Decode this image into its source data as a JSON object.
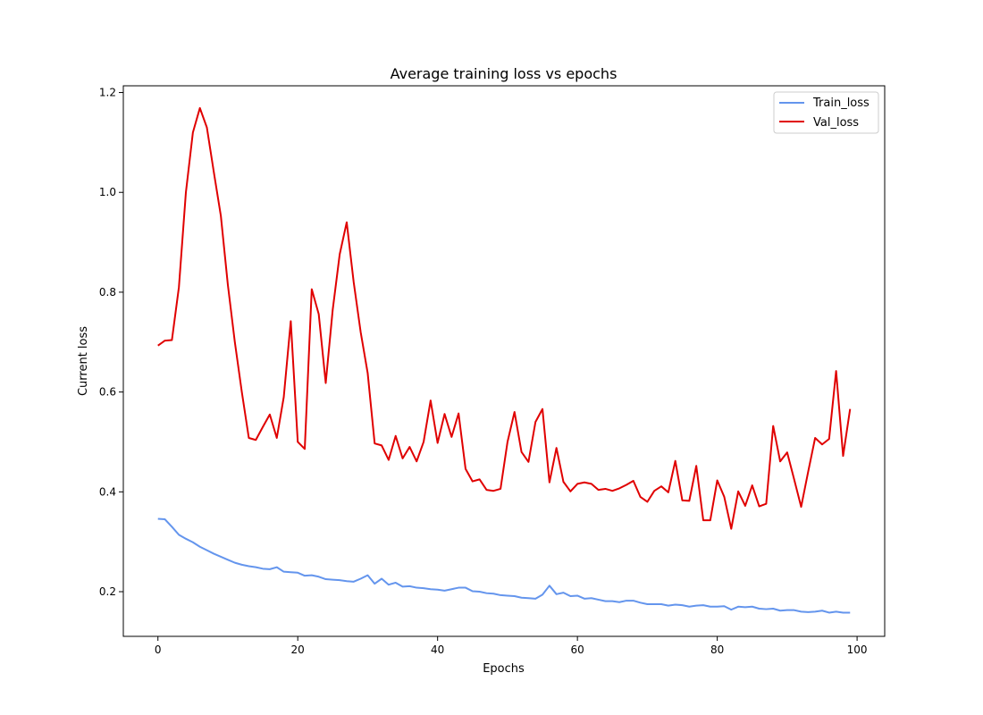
{
  "chart_data": {
    "type": "line",
    "title": "Average training loss vs epochs",
    "xlabel": "Epochs",
    "ylabel": "Current loss",
    "xlim": [
      -4.95,
      103.95
    ],
    "ylim": [
      0.1105,
      1.2135
    ],
    "xticks": [
      0,
      20,
      40,
      60,
      80,
      100
    ],
    "yticks": [
      0.2,
      0.4,
      0.6,
      0.8,
      1.0,
      1.2
    ],
    "xtick_labels": [
      "0",
      "20",
      "40",
      "60",
      "80",
      "100"
    ],
    "ytick_labels": [
      "0.2",
      "0.4",
      "0.6",
      "0.8",
      "1.0",
      "1.2"
    ],
    "grid": false,
    "legend_position": "top-right",
    "x": [
      0,
      1,
      2,
      3,
      4,
      5,
      6,
      7,
      8,
      9,
      10,
      11,
      12,
      13,
      14,
      15,
      16,
      17,
      18,
      19,
      20,
      21,
      22,
      23,
      24,
      25,
      26,
      27,
      28,
      29,
      30,
      31,
      32,
      33,
      34,
      35,
      36,
      37,
      38,
      39,
      40,
      41,
      42,
      43,
      44,
      45,
      46,
      47,
      48,
      49,
      50,
      51,
      52,
      53,
      54,
      55,
      56,
      57,
      58,
      59,
      60,
      61,
      62,
      63,
      64,
      65,
      66,
      67,
      68,
      69,
      70,
      71,
      72,
      73,
      74,
      75,
      76,
      77,
      78,
      79,
      80,
      81,
      82,
      83,
      84,
      85,
      86,
      87,
      88,
      89,
      90,
      91,
      92,
      93,
      94,
      95,
      96,
      97,
      98,
      99
    ],
    "series": [
      {
        "name": "Train_loss",
        "color": "#6495ed",
        "values": [
          0.346,
          0.345,
          0.33,
          0.314,
          0.306,
          0.299,
          0.29,
          0.283,
          0.276,
          0.27,
          0.264,
          0.258,
          0.254,
          0.251,
          0.249,
          0.246,
          0.245,
          0.249,
          0.24,
          0.239,
          0.238,
          0.232,
          0.233,
          0.23,
          0.225,
          0.224,
          0.223,
          0.221,
          0.22,
          0.226,
          0.233,
          0.216,
          0.226,
          0.214,
          0.218,
          0.21,
          0.211,
          0.208,
          0.207,
          0.205,
          0.204,
          0.202,
          0.205,
          0.208,
          0.208,
          0.201,
          0.2,
          0.197,
          0.196,
          0.193,
          0.192,
          0.191,
          0.188,
          0.187,
          0.186,
          0.194,
          0.212,
          0.195,
          0.198,
          0.191,
          0.192,
          0.186,
          0.187,
          0.184,
          0.181,
          0.181,
          0.179,
          0.182,
          0.182,
          0.178,
          0.175,
          0.175,
          0.175,
          0.172,
          0.174,
          0.173,
          0.17,
          0.172,
          0.173,
          0.17,
          0.17,
          0.171,
          0.164,
          0.17,
          0.169,
          0.17,
          0.166,
          0.165,
          0.166,
          0.162,
          0.163,
          0.163,
          0.16,
          0.159,
          0.16,
          0.162,
          0.158,
          0.16,
          0.158,
          0.158
        ]
      },
      {
        "name": "Val_loss",
        "color": "#e00000",
        "values": [
          0.693,
          0.703,
          0.704,
          0.81,
          1.0,
          1.12,
          1.169,
          1.13,
          1.04,
          0.953,
          0.815,
          0.7,
          0.6,
          0.508,
          0.504,
          0.53,
          0.555,
          0.508,
          0.59,
          0.742,
          0.5,
          0.486,
          0.806,
          0.756,
          0.618,
          0.765,
          0.876,
          0.94,
          0.82,
          0.72,
          0.638,
          0.497,
          0.493,
          0.464,
          0.512,
          0.467,
          0.49,
          0.461,
          0.5,
          0.583,
          0.498,
          0.556,
          0.51,
          0.557,
          0.446,
          0.421,
          0.425,
          0.404,
          0.402,
          0.406,
          0.5,
          0.56,
          0.48,
          0.46,
          0.54,
          0.566,
          0.419,
          0.488,
          0.42,
          0.401,
          0.416,
          0.419,
          0.416,
          0.404,
          0.406,
          0.402,
          0.407,
          0.414,
          0.422,
          0.39,
          0.38,
          0.402,
          0.411,
          0.399,
          0.462,
          0.383,
          0.382,
          0.452,
          0.343,
          0.343,
          0.423,
          0.39,
          0.326,
          0.401,
          0.372,
          0.413,
          0.371,
          0.376,
          0.532,
          0.461,
          0.479,
          0.425,
          0.37,
          0.44,
          0.508,
          0.495,
          0.506,
          0.642,
          0.472,
          0.566
        ]
      }
    ]
  }
}
